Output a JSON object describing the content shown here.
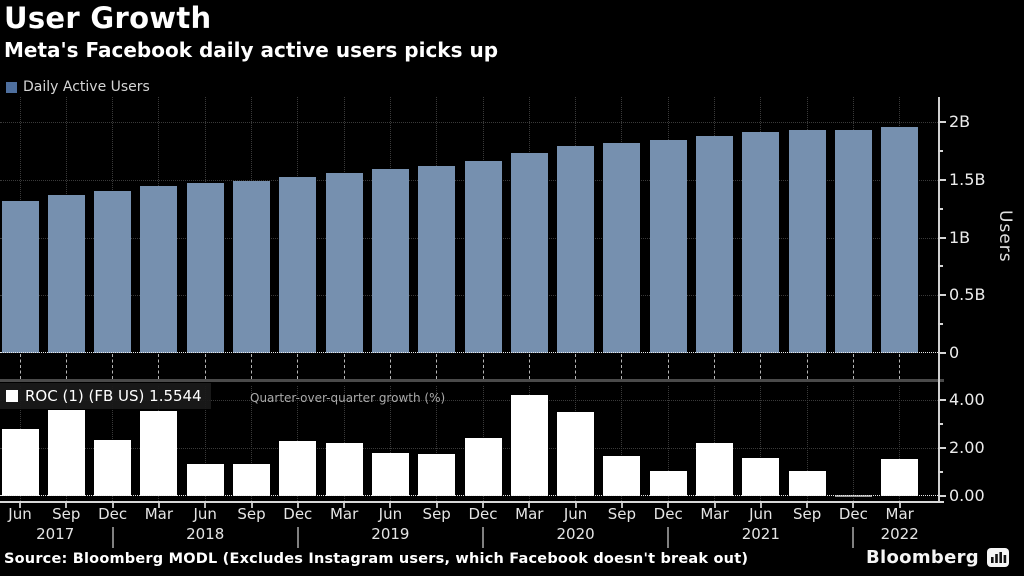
{
  "header": {
    "title": "User Growth",
    "subtitle": "Meta's Facebook daily active users picks up"
  },
  "colors": {
    "background": "#000000",
    "dau_bar": "#7690af",
    "dau_legend_swatch": "#4e6f9e",
    "roc_bar": "#ffffff",
    "roc_flat_bar": "#999999",
    "grid": "#3a3a3a",
    "axis": "#d0d0d0",
    "separator": "#4a4a4a",
    "text": "#ffffff"
  },
  "x_axis": {
    "months": [
      "Jun",
      "Sep",
      "Dec",
      "Mar",
      "Jun",
      "Sep",
      "Dec",
      "Mar",
      "Jun",
      "Sep",
      "Dec",
      "Mar",
      "Jun",
      "Sep",
      "Dec",
      "Mar",
      "Jun",
      "Sep",
      "Dec",
      "Mar"
    ],
    "years": [
      {
        "label": "2017",
        "index": 0.76
      },
      {
        "label": "2018",
        "index": 4
      },
      {
        "label": "2019",
        "index": 8
      },
      {
        "label": "2020",
        "index": 12
      },
      {
        "label": "2021",
        "index": 16
      },
      {
        "label": "2022",
        "index": 19
      }
    ],
    "year_divider_indices": [
      2,
      6,
      10,
      14,
      18
    ]
  },
  "chart_data": [
    {
      "type": "bar",
      "panel": "top",
      "legend": "Daily Active Users",
      "ylabel": "Users",
      "unit": "billions of users",
      "ylim": [
        0,
        2.22
      ],
      "yticks": [
        0,
        0.5,
        1.0,
        1.5,
        2.0
      ],
      "ytick_labels": [
        "0",
        "0.5B",
        "1B",
        "1.5B",
        "2B"
      ],
      "minor_yticks": [
        0.25,
        0.75,
        1.25,
        1.75
      ],
      "grid": "dotted",
      "legend_position": "top-left",
      "categories": [
        "Jun 2017",
        "Sep 2017",
        "Dec 2017",
        "Mar 2018",
        "Jun 2018",
        "Sep 2018",
        "Dec 2018",
        "Mar 2019",
        "Jun 2019",
        "Sep 2019",
        "Dec 2019",
        "Mar 2020",
        "Jun 2020",
        "Sep 2020",
        "Dec 2020",
        "Mar 2021",
        "Jun 2021",
        "Sep 2021",
        "Dec 2021",
        "Mar 2022"
      ],
      "values": [
        1.32,
        1.37,
        1.4,
        1.45,
        1.47,
        1.49,
        1.52,
        1.56,
        1.59,
        1.62,
        1.66,
        1.73,
        1.79,
        1.82,
        1.84,
        1.88,
        1.91,
        1.93,
        1.93,
        1.96
      ]
    },
    {
      "type": "bar",
      "panel": "bottom",
      "legend": "ROC (1) (FB US) 1.5544",
      "annotation": "Quarter-over-quarter growth (%)",
      "last_value": "1.5544",
      "ylim": [
        -0.3,
        4.65
      ],
      "yticks": [
        0,
        2,
        4
      ],
      "ytick_labels": [
        "0.00",
        "2.00",
        "4.00"
      ],
      "minor_yticks": [
        1,
        3
      ],
      "grid": "dotted",
      "legend_position": "top-left",
      "categories": [
        "Jun 2017",
        "Sep 2017",
        "Dec 2017",
        "Mar 2018",
        "Jun 2018",
        "Sep 2018",
        "Dec 2018",
        "Mar 2019",
        "Jun 2019",
        "Sep 2019",
        "Dec 2019",
        "Mar 2020",
        "Jun 2020",
        "Sep 2020",
        "Dec 2020",
        "Mar 2021",
        "Jun 2021",
        "Sep 2021",
        "Dec 2021",
        "Mar 2022"
      ],
      "values": [
        2.8,
        3.6,
        2.35,
        3.55,
        1.35,
        1.35,
        2.3,
        2.2,
        1.8,
        1.75,
        2.4,
        4.2,
        3.5,
        1.65,
        1.05,
        2.2,
        1.6,
        1.05,
        -0.05,
        1.5544
      ]
    }
  ],
  "source": {
    "text": "Source: Bloomberg MODL (Excludes Instagram users, which Facebook doesn't break out)"
  },
  "brand": {
    "name": "Bloomberg",
    "icon": "bar-chart-icon"
  }
}
